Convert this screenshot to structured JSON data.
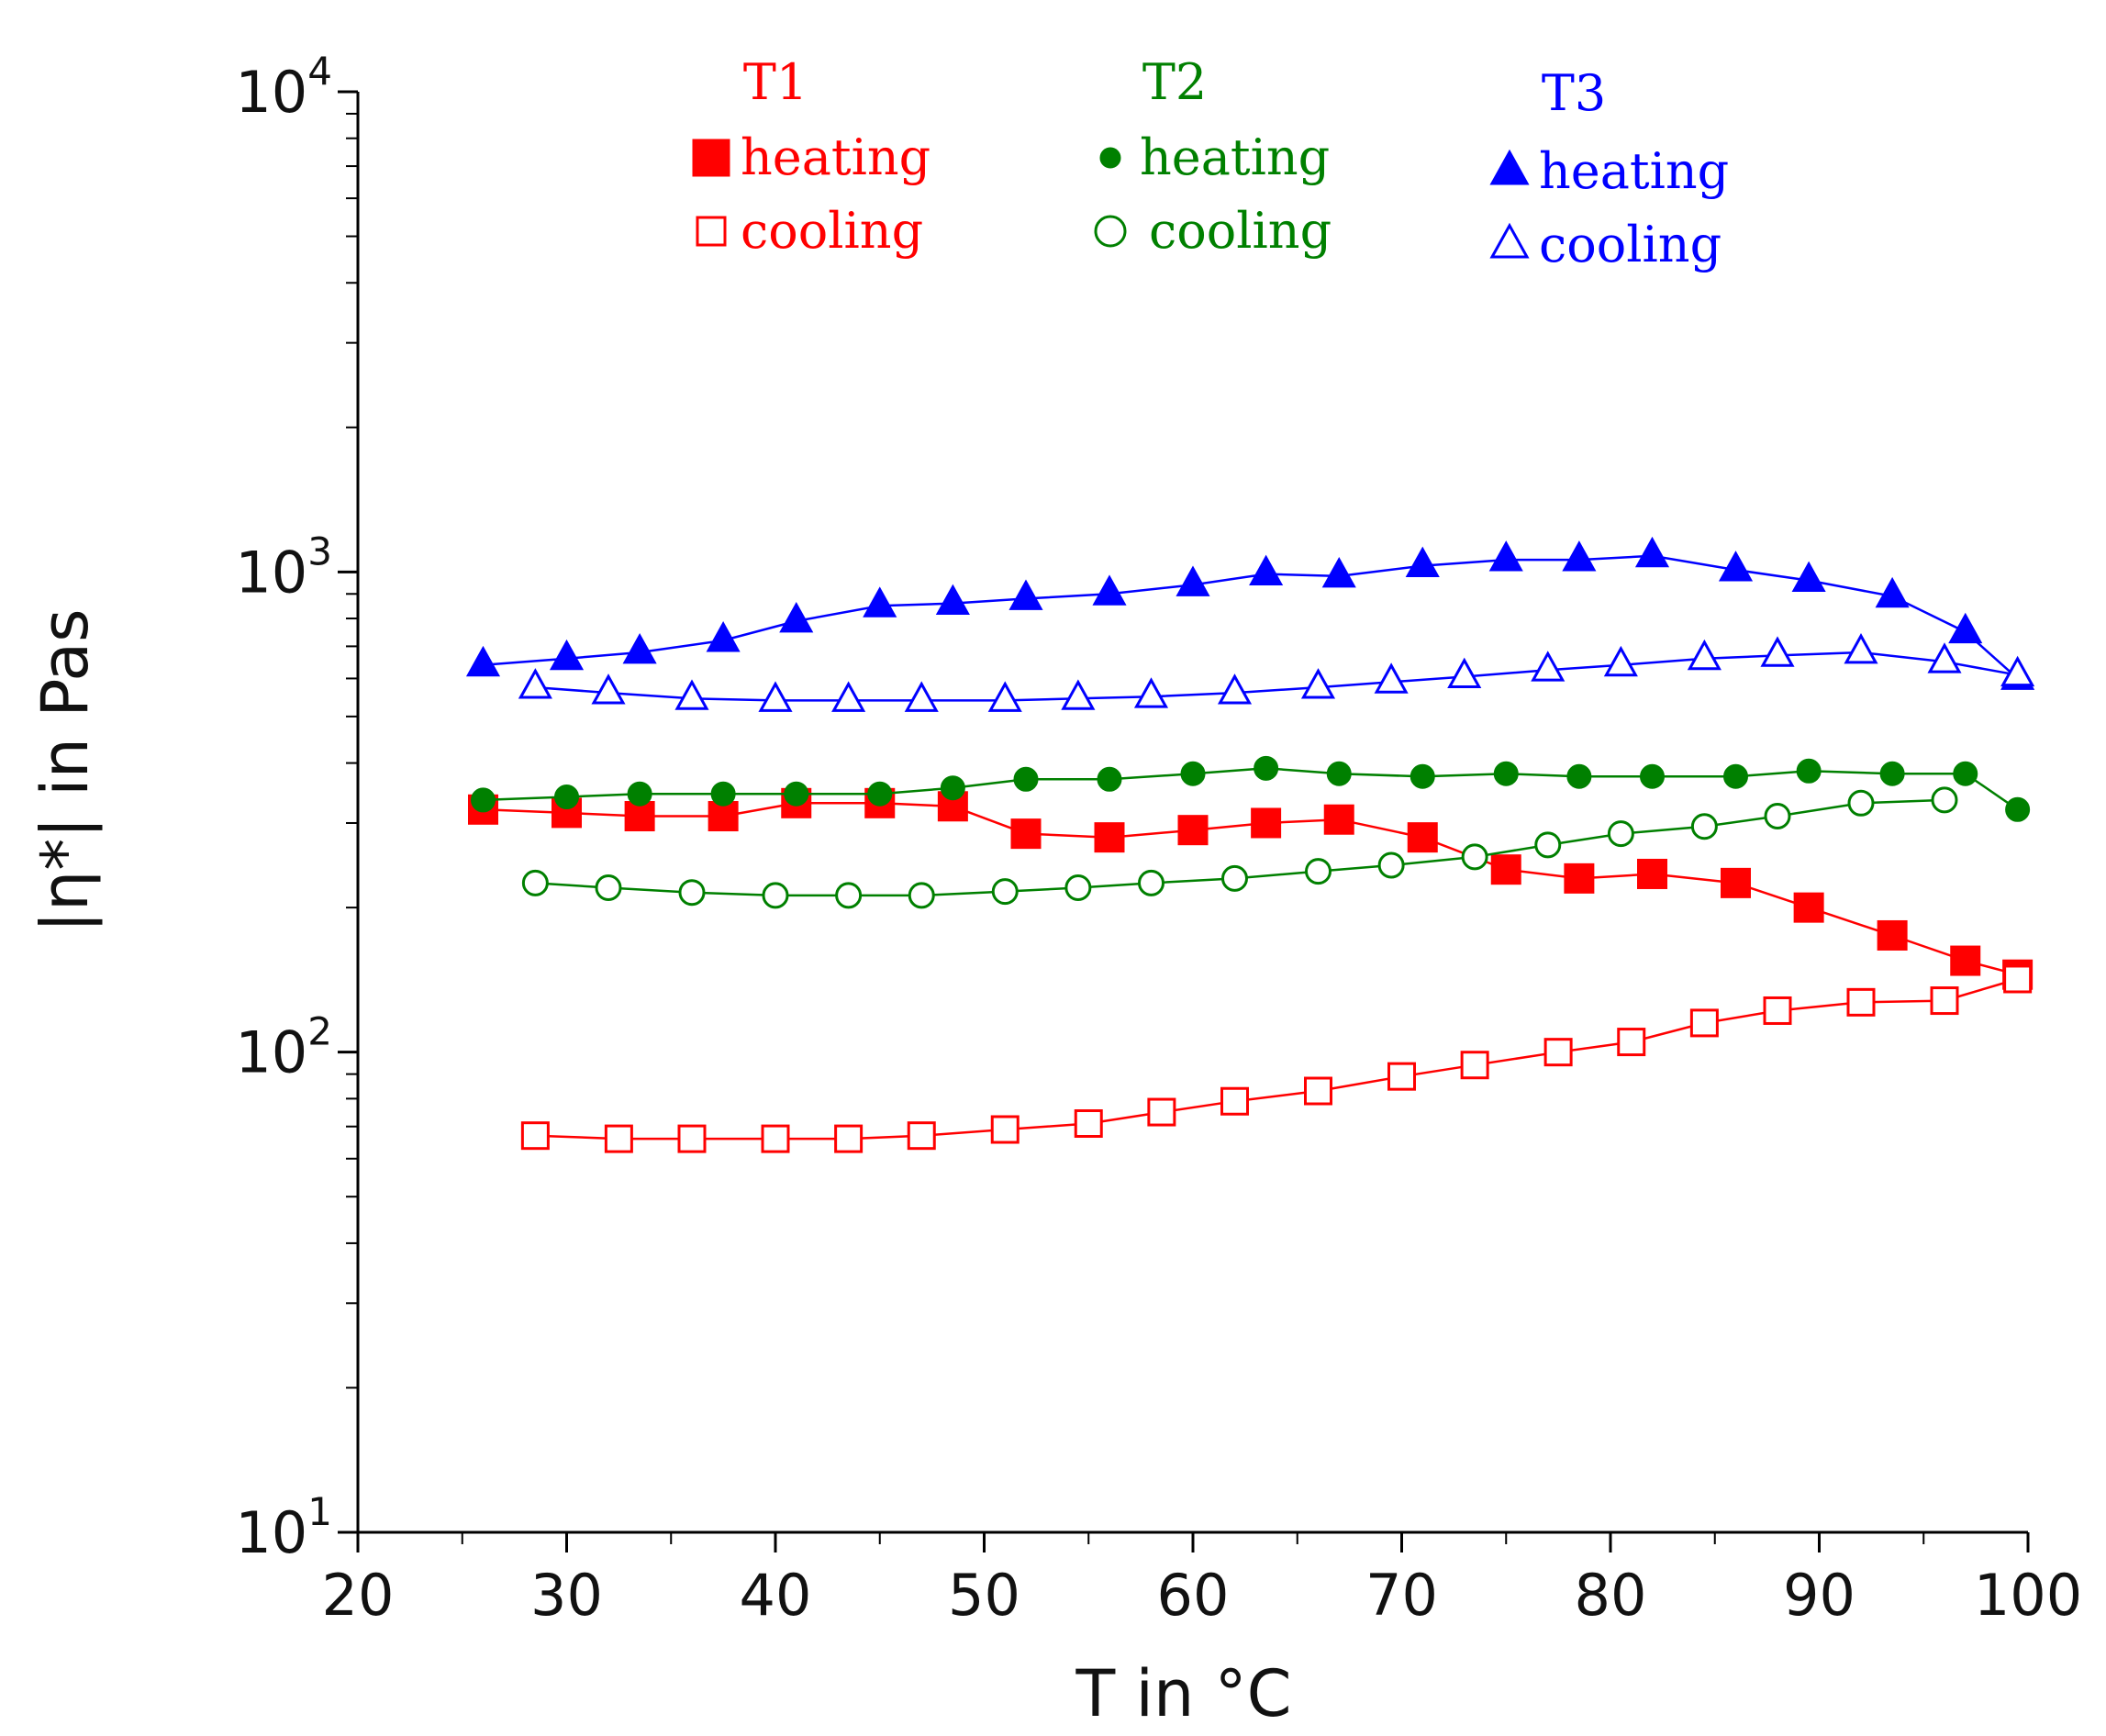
{
  "chart_data": {
    "type": "scatter",
    "xlabel": "T in °C",
    "ylabel": "|η*| in Pas",
    "xlim": [
      20,
      100
    ],
    "ylim": [
      10,
      10000
    ],
    "yscale": "log",
    "xticks": [
      20,
      30,
      40,
      50,
      60,
      70,
      80,
      90,
      100
    ],
    "yticks": [
      {
        "base": "10",
        "exp": "1",
        "value": 10
      },
      {
        "base": "10",
        "exp": "2",
        "value": 100
      },
      {
        "base": "10",
        "exp": "3",
        "value": 1000
      },
      {
        "base": "10",
        "exp": "4",
        "value": 10000
      }
    ],
    "grid": false,
    "legend": [
      {
        "group": "T1",
        "color": "#ff0000",
        "entries": [
          {
            "label": "heating",
            "marker": "square",
            "filled": true
          },
          {
            "label": "cooling",
            "marker": "square",
            "filled": false
          }
        ]
      },
      {
        "group": "T2",
        "color": "#008000",
        "entries": [
          {
            "label": "heating",
            "marker": "circle",
            "filled": true
          },
          {
            "label": "cooling",
            "marker": "circle",
            "filled": false
          }
        ]
      },
      {
        "group": "T3",
        "color": "#0000ff",
        "entries": [
          {
            "label": "heating",
            "marker": "triangle",
            "filled": true
          },
          {
            "label": "cooling",
            "marker": "triangle",
            "filled": false
          }
        ]
      }
    ],
    "series": [
      {
        "group": "T1",
        "label": "heating",
        "color": "#ff0000",
        "marker": "square",
        "filled": true,
        "x": [
          26,
          30,
          33.5,
          37.5,
          41,
          45,
          48.5,
          52,
          56,
          60,
          63.5,
          67,
          71,
          75,
          78.5,
          82,
          86,
          89.5,
          93.5,
          97,
          99.5
        ],
        "y": [
          320,
          315,
          310,
          310,
          330,
          330,
          325,
          285,
          280,
          290,
          300,
          305,
          280,
          240,
          230,
          235,
          225,
          200,
          175,
          155,
          145
        ]
      },
      {
        "group": "T1",
        "label": "cooling",
        "color": "#ff0000",
        "marker": "square",
        "filled": false,
        "x": [
          28.5,
          32.5,
          36,
          40,
          43.5,
          47,
          51,
          55,
          58.5,
          62,
          66,
          70,
          73.5,
          77.5,
          81,
          84.5,
          88,
          92,
          96,
          99.5
        ],
        "y": [
          67,
          66,
          66,
          66,
          66,
          67,
          69,
          71,
          75,
          79,
          83,
          89,
          94,
          100,
          105,
          115,
          122,
          127,
          128,
          142
        ]
      },
      {
        "group": "T2",
        "label": "heating",
        "color": "#008000",
        "marker": "circle",
        "filled": true,
        "x": [
          26,
          30,
          33.5,
          37.5,
          41,
          45,
          48.5,
          52,
          56,
          60,
          63.5,
          67,
          71,
          75,
          78.5,
          82,
          86,
          89.5,
          93.5,
          97,
          99.5
        ],
        "y": [
          335,
          340,
          345,
          345,
          345,
          345,
          355,
          370,
          370,
          380,
          390,
          380,
          375,
          380,
          375,
          375,
          375,
          385,
          380,
          380,
          320
        ]
      },
      {
        "group": "T2",
        "label": "cooling",
        "color": "#008000",
        "marker": "circle",
        "filled": false,
        "x": [
          28.5,
          32,
          36,
          40,
          43.5,
          47,
          51,
          54.5,
          58,
          62,
          66,
          69.5,
          73.5,
          77,
          80.5,
          84.5,
          88,
          92,
          96
        ],
        "y": [
          225,
          220,
          215,
          212,
          212,
          212,
          216,
          220,
          225,
          230,
          238,
          245,
          255,
          270,
          285,
          295,
          310,
          330,
          335
        ]
      },
      {
        "group": "T3",
        "label": "heating",
        "color": "#0000ff",
        "marker": "triangle",
        "filled": true,
        "x": [
          26,
          30,
          33.5,
          37.5,
          41,
          45,
          48.5,
          52,
          56,
          60,
          63.5,
          67,
          71,
          75,
          78.5,
          82,
          86,
          89.5,
          93.5,
          97,
          99.5
        ],
        "y": [
          640,
          660,
          680,
          720,
          790,
          850,
          860,
          880,
          900,
          940,
          990,
          980,
          1030,
          1060,
          1060,
          1080,
          1010,
          960,
          890,
          750,
          600
        ]
      },
      {
        "group": "T3",
        "label": "cooling",
        "color": "#0000ff",
        "marker": "triangle",
        "filled": false,
        "x": [
          28.5,
          32,
          36,
          40,
          43.5,
          47,
          51,
          54.5,
          58,
          62,
          66,
          69.5,
          73,
          77,
          80.5,
          84.5,
          88,
          92,
          96,
          99.5
        ],
        "y": [
          575,
          560,
          545,
          540,
          540,
          540,
          540,
          545,
          550,
          560,
          575,
          590,
          605,
          625,
          640,
          660,
          670,
          680,
          650,
          610
        ]
      }
    ]
  }
}
